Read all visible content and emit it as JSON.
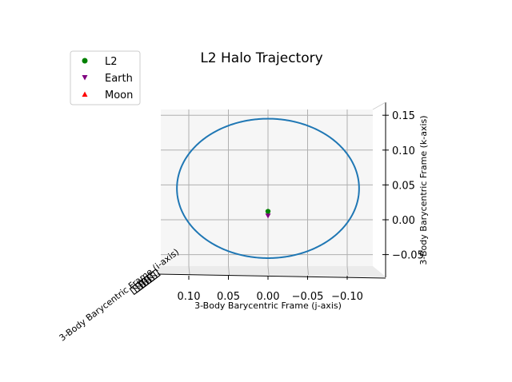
{
  "chart_data": {
    "type": "line",
    "projection": "3d",
    "title": "L2 Halo Trajectory",
    "xlabel": "3-Body Barycentric Frame (i-axis)",
    "ylabel": "3-Body Barycentric Frame (j-axis)",
    "zlabel": "3-Body Barycentric Frame (k-axis)",
    "y_ticks": [
      "0.10",
      "0.05",
      "0.00",
      "−0.05",
      "−0.10"
    ],
    "y_tick_values": [
      0.1,
      0.05,
      0.0,
      -0.05,
      -0.1
    ],
    "z_ticks": [
      "0.15",
      "0.10",
      "0.05",
      "0.00",
      "−0.05"
    ],
    "z_tick_values": [
      0.15,
      0.1,
      0.05,
      0.0,
      -0.05
    ],
    "ylim": [
      0.148,
      -0.148
    ],
    "zlim": [
      -0.085,
      0.165
    ],
    "grid": true,
    "legend_position": "upper-left",
    "legend": [
      {
        "label": "L2",
        "marker": "circle",
        "color": "#008000"
      },
      {
        "label": "Earth",
        "marker": "triangle-down",
        "color": "#800080"
      },
      {
        "label": "Moon",
        "marker": "triangle-up",
        "color": "#ff0000"
      }
    ],
    "series": [
      {
        "kind": "trajectory",
        "color": "#1f77b4",
        "y_center": 0.0,
        "z_center": 0.045,
        "y_semi": 0.115,
        "z_semi": 0.1
      }
    ],
    "points": [
      {
        "name": "L2",
        "y": 0.0,
        "z": 0.012,
        "color": "#008000",
        "marker": "circle"
      },
      {
        "name": "Earth",
        "y": 0.0,
        "z": 0.006,
        "color": "#800080",
        "marker": "triangle-down"
      }
    ]
  }
}
